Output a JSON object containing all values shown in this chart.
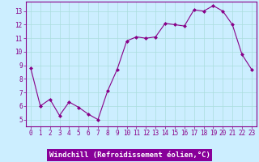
{
  "x": [
    0,
    1,
    2,
    3,
    4,
    5,
    6,
    7,
    8,
    9,
    10,
    11,
    12,
    13,
    14,
    15,
    16,
    17,
    18,
    19,
    20,
    21,
    22,
    23
  ],
  "y": [
    8.8,
    6.0,
    6.5,
    5.3,
    6.3,
    5.9,
    5.4,
    5.0,
    7.1,
    8.7,
    10.8,
    11.1,
    11.0,
    11.1,
    12.1,
    12.0,
    11.9,
    13.1,
    13.0,
    13.4,
    13.0,
    12.0,
    9.8,
    8.7
  ],
  "line_color": "#880088",
  "marker": "D",
  "marker_size": 2.0,
  "background_color": "#cceeff",
  "grid_color": "#aadddd",
  "xlabel": "Windchill (Refroidissement éolien,°C)",
  "xlabel_bg": "#880099",
  "ylim": [
    4.5,
    13.7
  ],
  "xlim": [
    -0.5,
    23.5
  ],
  "yticks": [
    5,
    6,
    7,
    8,
    9,
    10,
    11,
    12,
    13
  ],
  "xticks": [
    0,
    1,
    2,
    3,
    4,
    5,
    6,
    7,
    8,
    9,
    10,
    11,
    12,
    13,
    14,
    15,
    16,
    17,
    18,
    19,
    20,
    21,
    22,
    23
  ],
  "tick_color": "#880088",
  "spine_color": "#880088",
  "label_fontsize": 5.5,
  "xlabel_fontsize": 6.5
}
